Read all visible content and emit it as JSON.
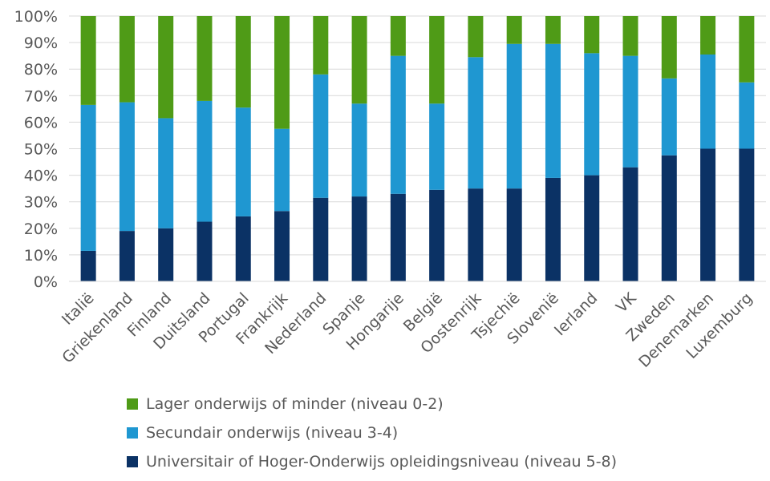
{
  "chart_data": {
    "type": "bar",
    "stacked": true,
    "categories": [
      "Italië",
      "Griekenland",
      "Finland",
      "Duitsland",
      "Portugal",
      "Frankrijk",
      "Nederland",
      "Spanje",
      "Hongarije",
      "België",
      "Oostenrijk",
      "Tsjechië",
      "Slovenië",
      "Ierland",
      "VK",
      "Zweden",
      "Denemarken",
      "Luxemburg"
    ],
    "series": [
      {
        "name": "Universitair of Hoger-Onderwijs opleidingsniveau (niveau 5-8)",
        "color": "#0b3265",
        "values": [
          11.5,
          19,
          20,
          22.5,
          24.5,
          26.5,
          31.5,
          32,
          33,
          34.5,
          35,
          35,
          39,
          40,
          43,
          47.5,
          50,
          50
        ]
      },
      {
        "name": "Secundair onderwijs (niveau 3-4)",
        "color": "#1f97d1",
        "values": [
          55,
          48.5,
          41.5,
          45.5,
          41,
          31,
          46.5,
          35,
          52,
          32.5,
          49.5,
          54.5,
          50.5,
          46,
          42,
          29,
          35.5,
          25
        ]
      },
      {
        "name": "Lager onderwijs of minder (niveau 0-2)",
        "color": "#4f9b17",
        "values": [
          33.5,
          32.5,
          38.5,
          32,
          34.5,
          42.5,
          22,
          33,
          15,
          33,
          15.5,
          10.5,
          10.5,
          14,
          15,
          23.5,
          14.5,
          25
        ]
      }
    ],
    "yticks": [
      "0%",
      "10%",
      "20%",
      "30%",
      "40%",
      "50%",
      "60%",
      "70%",
      "80%",
      "90%",
      "100%"
    ],
    "ylim": [
      0,
      100
    ],
    "grid": true,
    "legend_position": "bottom",
    "legend_order": [
      2,
      1,
      0
    ]
  }
}
